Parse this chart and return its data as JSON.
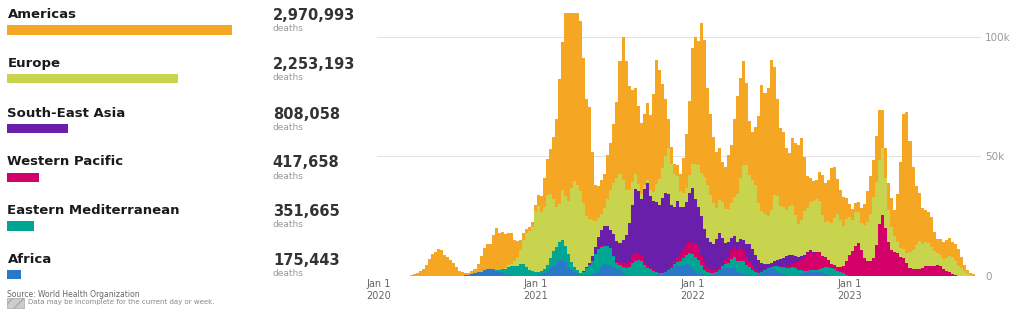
{
  "regions": [
    "Americas",
    "Europe",
    "South-East Asia",
    "Western Pacific",
    "Eastern Mediterranean",
    "Africa"
  ],
  "totals": [
    "2,970,993",
    "2,253,193",
    "808,058",
    "417,658",
    "351,665",
    "175,443"
  ],
  "colors": [
    "#F5A623",
    "#C8D44E",
    "#6A1FAB",
    "#D4006A",
    "#00A693",
    "#2979C8"
  ],
  "legend_bar_lengths": [
    1.0,
    0.76,
    0.27,
    0.14,
    0.12,
    0.06
  ],
  "source_text": "Source: World Health Organization",
  "note_text": "Data may be incomplete for the current day or week.",
  "y_tick_labels": [
    "0",
    "50k",
    "100k"
  ],
  "x_tick_labels": [
    "Jan 1\n2020",
    "Jan 1\n2021",
    "Jan 1\n2022",
    "Jan 1\n2023"
  ],
  "num_weeks": 200,
  "background_color": "#FFFFFF",
  "ylim": 110000
}
